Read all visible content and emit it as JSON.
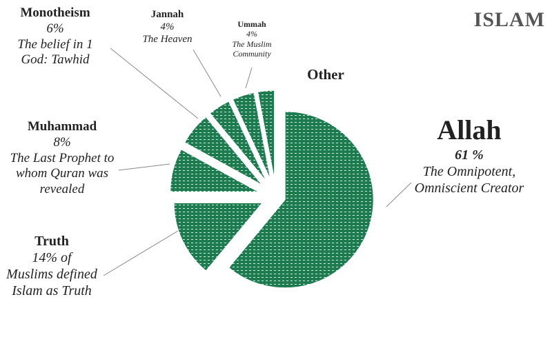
{
  "chart_data": {
    "type": "pie",
    "title": "ISLAM",
    "categories": [
      "Allah",
      "Truth",
      "Muhammad",
      "Monotheism",
      "Jannah",
      "Ummah",
      "Other"
    ],
    "values": [
      61,
      14,
      8,
      6,
      4,
      4,
      3
    ],
    "value_labels": [
      "61 %",
      "14% of",
      "8%",
      "6%",
      "4%",
      "4%",
      null
    ],
    "descriptions": [
      "The Omnipotent, Omniscient Creator",
      "Muslims defined Islam as Truth",
      "The Last Prophet to whom Quran was revealed",
      "The belief in 1 God: Tawhid",
      "The Heaven",
      "The Muslim Community",
      null
    ],
    "color": "#1e7b4f"
  }
}
